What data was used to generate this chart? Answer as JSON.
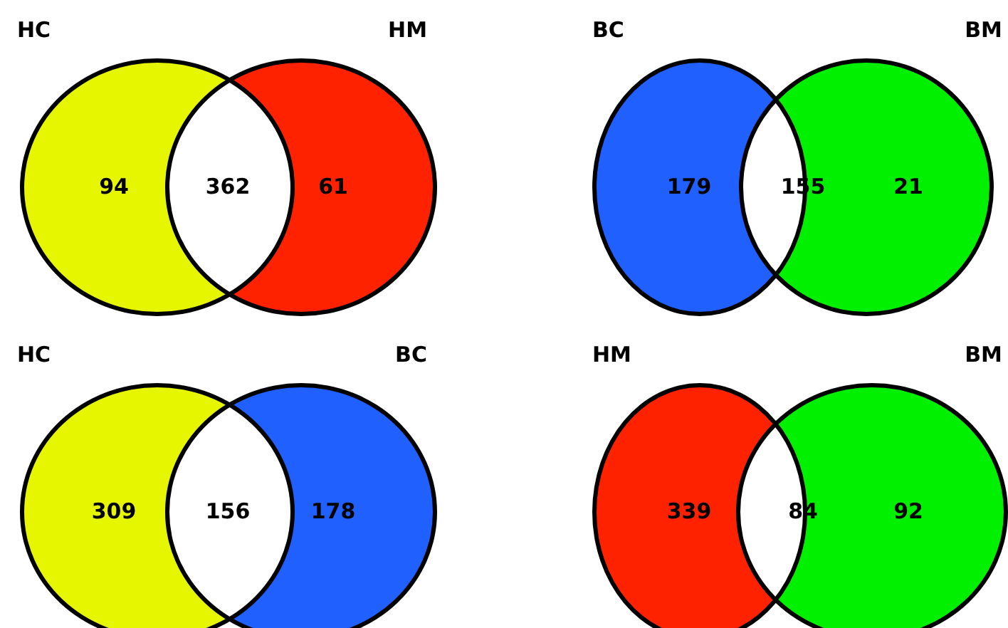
{
  "chart_data": [
    {
      "type": "other",
      "annotations": [
        "HC",
        "HM"
      ],
      "categories": [
        null,
        null,
        null
      ],
      "values": [
        94,
        362,
        61
      ],
      "colors": [
        "#e6f500",
        "#ffffff",
        "#ff2200"
      ],
      "data_labels": true
    },
    {
      "type": "other",
      "annotations": [
        "BC",
        "BM"
      ],
      "categories": [
        null,
        null,
        null
      ],
      "values": [
        179,
        155,
        21
      ],
      "colors": [
        "#2060ff",
        "#ffffff",
        "#00f000"
      ],
      "data_labels": true
    },
    {
      "type": "other",
      "annotations": [
        "HC",
        "BC"
      ],
      "categories": [
        null,
        null,
        null
      ],
      "values": [
        309,
        156,
        178
      ],
      "colors": [
        "#e6f500",
        "#ffffff",
        "#2060ff"
      ],
      "data_labels": true
    },
    {
      "type": "other",
      "annotations": [
        "HM",
        "BM"
      ],
      "categories": [
        null,
        null,
        null
      ],
      "values": [
        339,
        84,
        92
      ],
      "colors": [
        "#ff2200",
        "#ffffff",
        "#00f000"
      ],
      "data_labels": true
    }
  ]
}
